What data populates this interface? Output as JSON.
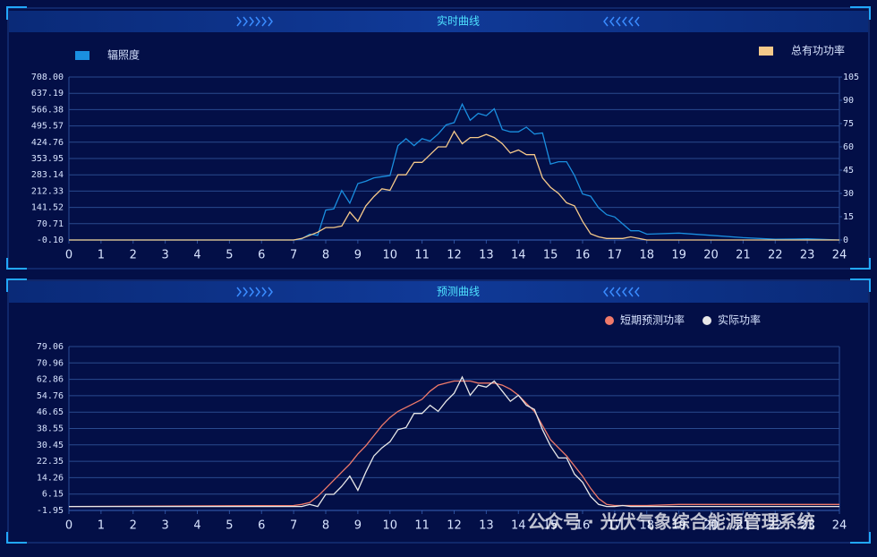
{
  "chart_data": [
    {
      "type": "line",
      "title": "实时曲线",
      "legend_marker": "rect",
      "x": [
        0,
        7,
        7.25,
        7.5,
        7.75,
        8,
        8.25,
        8.5,
        8.75,
        9,
        9.25,
        9.5,
        9.75,
        10,
        10.25,
        10.5,
        10.75,
        11,
        11.25,
        11.5,
        11.75,
        12,
        12.25,
        12.5,
        12.75,
        13,
        13.25,
        13.5,
        13.75,
        14,
        14.25,
        14.5,
        14.75,
        15,
        15.25,
        15.5,
        15.75,
        16,
        16.25,
        16.5,
        16.75,
        17,
        17.25,
        17.5,
        17.75,
        18,
        19,
        20,
        21,
        22,
        23,
        24
      ],
      "series": [
        {
          "name": "辐照度",
          "color": "#1a8fe0",
          "values": [
            0,
            0,
            5,
            25,
            20,
            130,
            135,
            215,
            160,
            245,
            255,
            270,
            275,
            280,
            410,
            440,
            410,
            440,
            430,
            460,
            500,
            510,
            590,
            520,
            550,
            540,
            570,
            480,
            470,
            470,
            490,
            460,
            465,
            330,
            340,
            340,
            280,
            200,
            190,
            140,
            110,
            100,
            70,
            40,
            40,
            25,
            30,
            20,
            10,
            3,
            5,
            0
          ]
        },
        {
          "name": "总有功功率",
          "color": "#f5c98a",
          "axis": "y2",
          "values": [
            0,
            0,
            1,
            3,
            5,
            8,
            8,
            9,
            18,
            12,
            22,
            28,
            33,
            32,
            42,
            42,
            50,
            50,
            55,
            60,
            60,
            70,
            62,
            66,
            66,
            68,
            66,
            62,
            56,
            58,
            55,
            55,
            40,
            34,
            30,
            24,
            22,
            12,
            4,
            2,
            1,
            1,
            1,
            2,
            1,
            0,
            0,
            0,
            0,
            0,
            0,
            0
          ]
        }
      ],
      "xlim": [
        0,
        24
      ],
      "xticks": [
        0,
        1,
        2,
        3,
        4,
        5,
        6,
        7,
        8,
        9,
        10,
        11,
        12,
        13,
        14,
        15,
        16,
        17,
        18,
        19,
        20,
        21,
        22,
        23,
        24
      ],
      "ylim": [
        -0.1,
        708
      ],
      "yticks": [
        {
          "value": -0.1,
          "label": "-0.10"
        },
        70.71,
        141.52,
        212.33,
        283.14,
        353.95,
        424.76,
        495.57,
        566.38,
        637.19,
        {
          "value": 708,
          "label": "708.00"
        }
      ],
      "y2lim": [
        0,
        105
      ],
      "y2ticks": [
        0,
        15,
        30,
        45,
        60,
        75,
        90,
        105
      ],
      "grid": true
    },
    {
      "type": "line",
      "title": "预测曲线",
      "legend_marker": "circle",
      "x": [
        0,
        7,
        7.25,
        7.5,
        7.75,
        8,
        8.25,
        8.5,
        8.75,
        9,
        9.25,
        9.5,
        9.75,
        10,
        10.25,
        10.5,
        10.75,
        11,
        11.25,
        11.5,
        11.75,
        12,
        12.25,
        12.5,
        12.75,
        13,
        13.25,
        13.5,
        13.75,
        14,
        14.25,
        14.5,
        14.75,
        15,
        15.25,
        15.5,
        15.75,
        16,
        16.25,
        16.5,
        16.75,
        17,
        17.25,
        17.5,
        17.75,
        18,
        19,
        20,
        21,
        22,
        23,
        24
      ],
      "series": [
        {
          "name": "短期预测功率",
          "color": "#f07a6a",
          "values": [
            0,
            0.5,
            1,
            2,
            5,
            9,
            13,
            17,
            21,
            26,
            30,
            35,
            40,
            44,
            47,
            49,
            51,
            53,
            57,
            60,
            61,
            62,
            62,
            62,
            61,
            61,
            61,
            60,
            58,
            55,
            51,
            47,
            40,
            33,
            29,
            25,
            20,
            15,
            9,
            4,
            1,
            0.5,
            0.5,
            0.5,
            0.5,
            0.5,
            1,
            1,
            1,
            1,
            1,
            1
          ]
        },
        {
          "name": "实际功率",
          "color": "#e8e8e8",
          "values": [
            0,
            0,
            0,
            1,
            0,
            6,
            6,
            10,
            15,
            8,
            17,
            25,
            29,
            32,
            38,
            39,
            46,
            46,
            50,
            47,
            52,
            56,
            64,
            55,
            60,
            59,
            62,
            57,
            52,
            55,
            50,
            48,
            38,
            30,
            24,
            24,
            16,
            12,
            5,
            1,
            0,
            0,
            0.5,
            0,
            0,
            0,
            0,
            0,
            0,
            0,
            0,
            0
          ]
        }
      ],
      "xlim": [
        0,
        24
      ],
      "xticks": [
        0,
        1,
        2,
        3,
        4,
        5,
        6,
        7,
        8,
        9,
        10,
        11,
        12,
        13,
        14,
        15,
        16,
        17,
        18,
        19,
        20,
        21,
        22,
        23,
        24
      ],
      "ylim": [
        -1.95,
        79.06
      ],
      "yticks": [
        -1.95,
        6.15,
        14.26,
        22.35,
        30.45,
        38.55,
        46.65,
        54.76,
        62.86,
        70.96,
        79.06
      ],
      "grid": true
    }
  ],
  "watermark": "公众号 · 光伏气象综合能源管理系统"
}
